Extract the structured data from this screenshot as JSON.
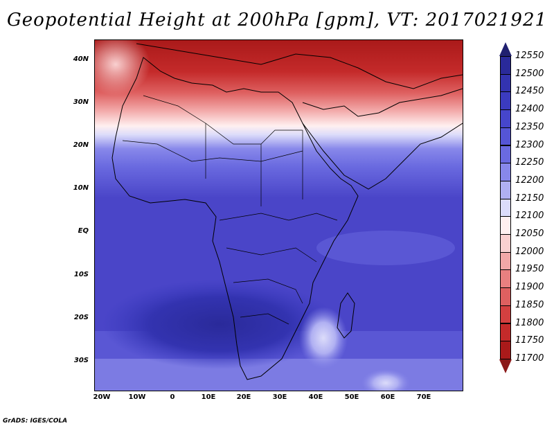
{
  "title": "Geopotential Height at 200hPa [gpm], VT: 2017021921",
  "lat_labels": [
    "40N",
    "30N",
    "20N",
    "10N",
    "EQ",
    "10S",
    "20S",
    "30S"
  ],
  "lon_labels": [
    "20W",
    "10W",
    "0",
    "10E",
    "20E",
    "30E",
    "40E",
    "50E",
    "60E",
    "70E"
  ],
  "colorbar": {
    "labels": [
      "12550",
      "12500",
      "12450",
      "12400",
      "12350",
      "12300",
      "12250",
      "12200",
      "12150",
      "12100",
      "12050",
      "12000",
      "11950",
      "11900",
      "11850",
      "11800",
      "11750",
      "11700"
    ],
    "colors": [
      "#2a2a9a",
      "#3333b0",
      "#3b3bc0",
      "#4646cc",
      "#5555d6",
      "#6a6ae0",
      "#8888ea",
      "#b0b0f2",
      "#dcdcfa",
      "#fff0f0",
      "#f9d0d0",
      "#f2a8a8",
      "#e88080",
      "#de6060",
      "#d44040",
      "#c42a2a",
      "#aa1a1a"
    ],
    "top_color": "#202070",
    "bottom_color": "#8b1a1a"
  },
  "footer": "GrADS: IGES/COLA"
}
